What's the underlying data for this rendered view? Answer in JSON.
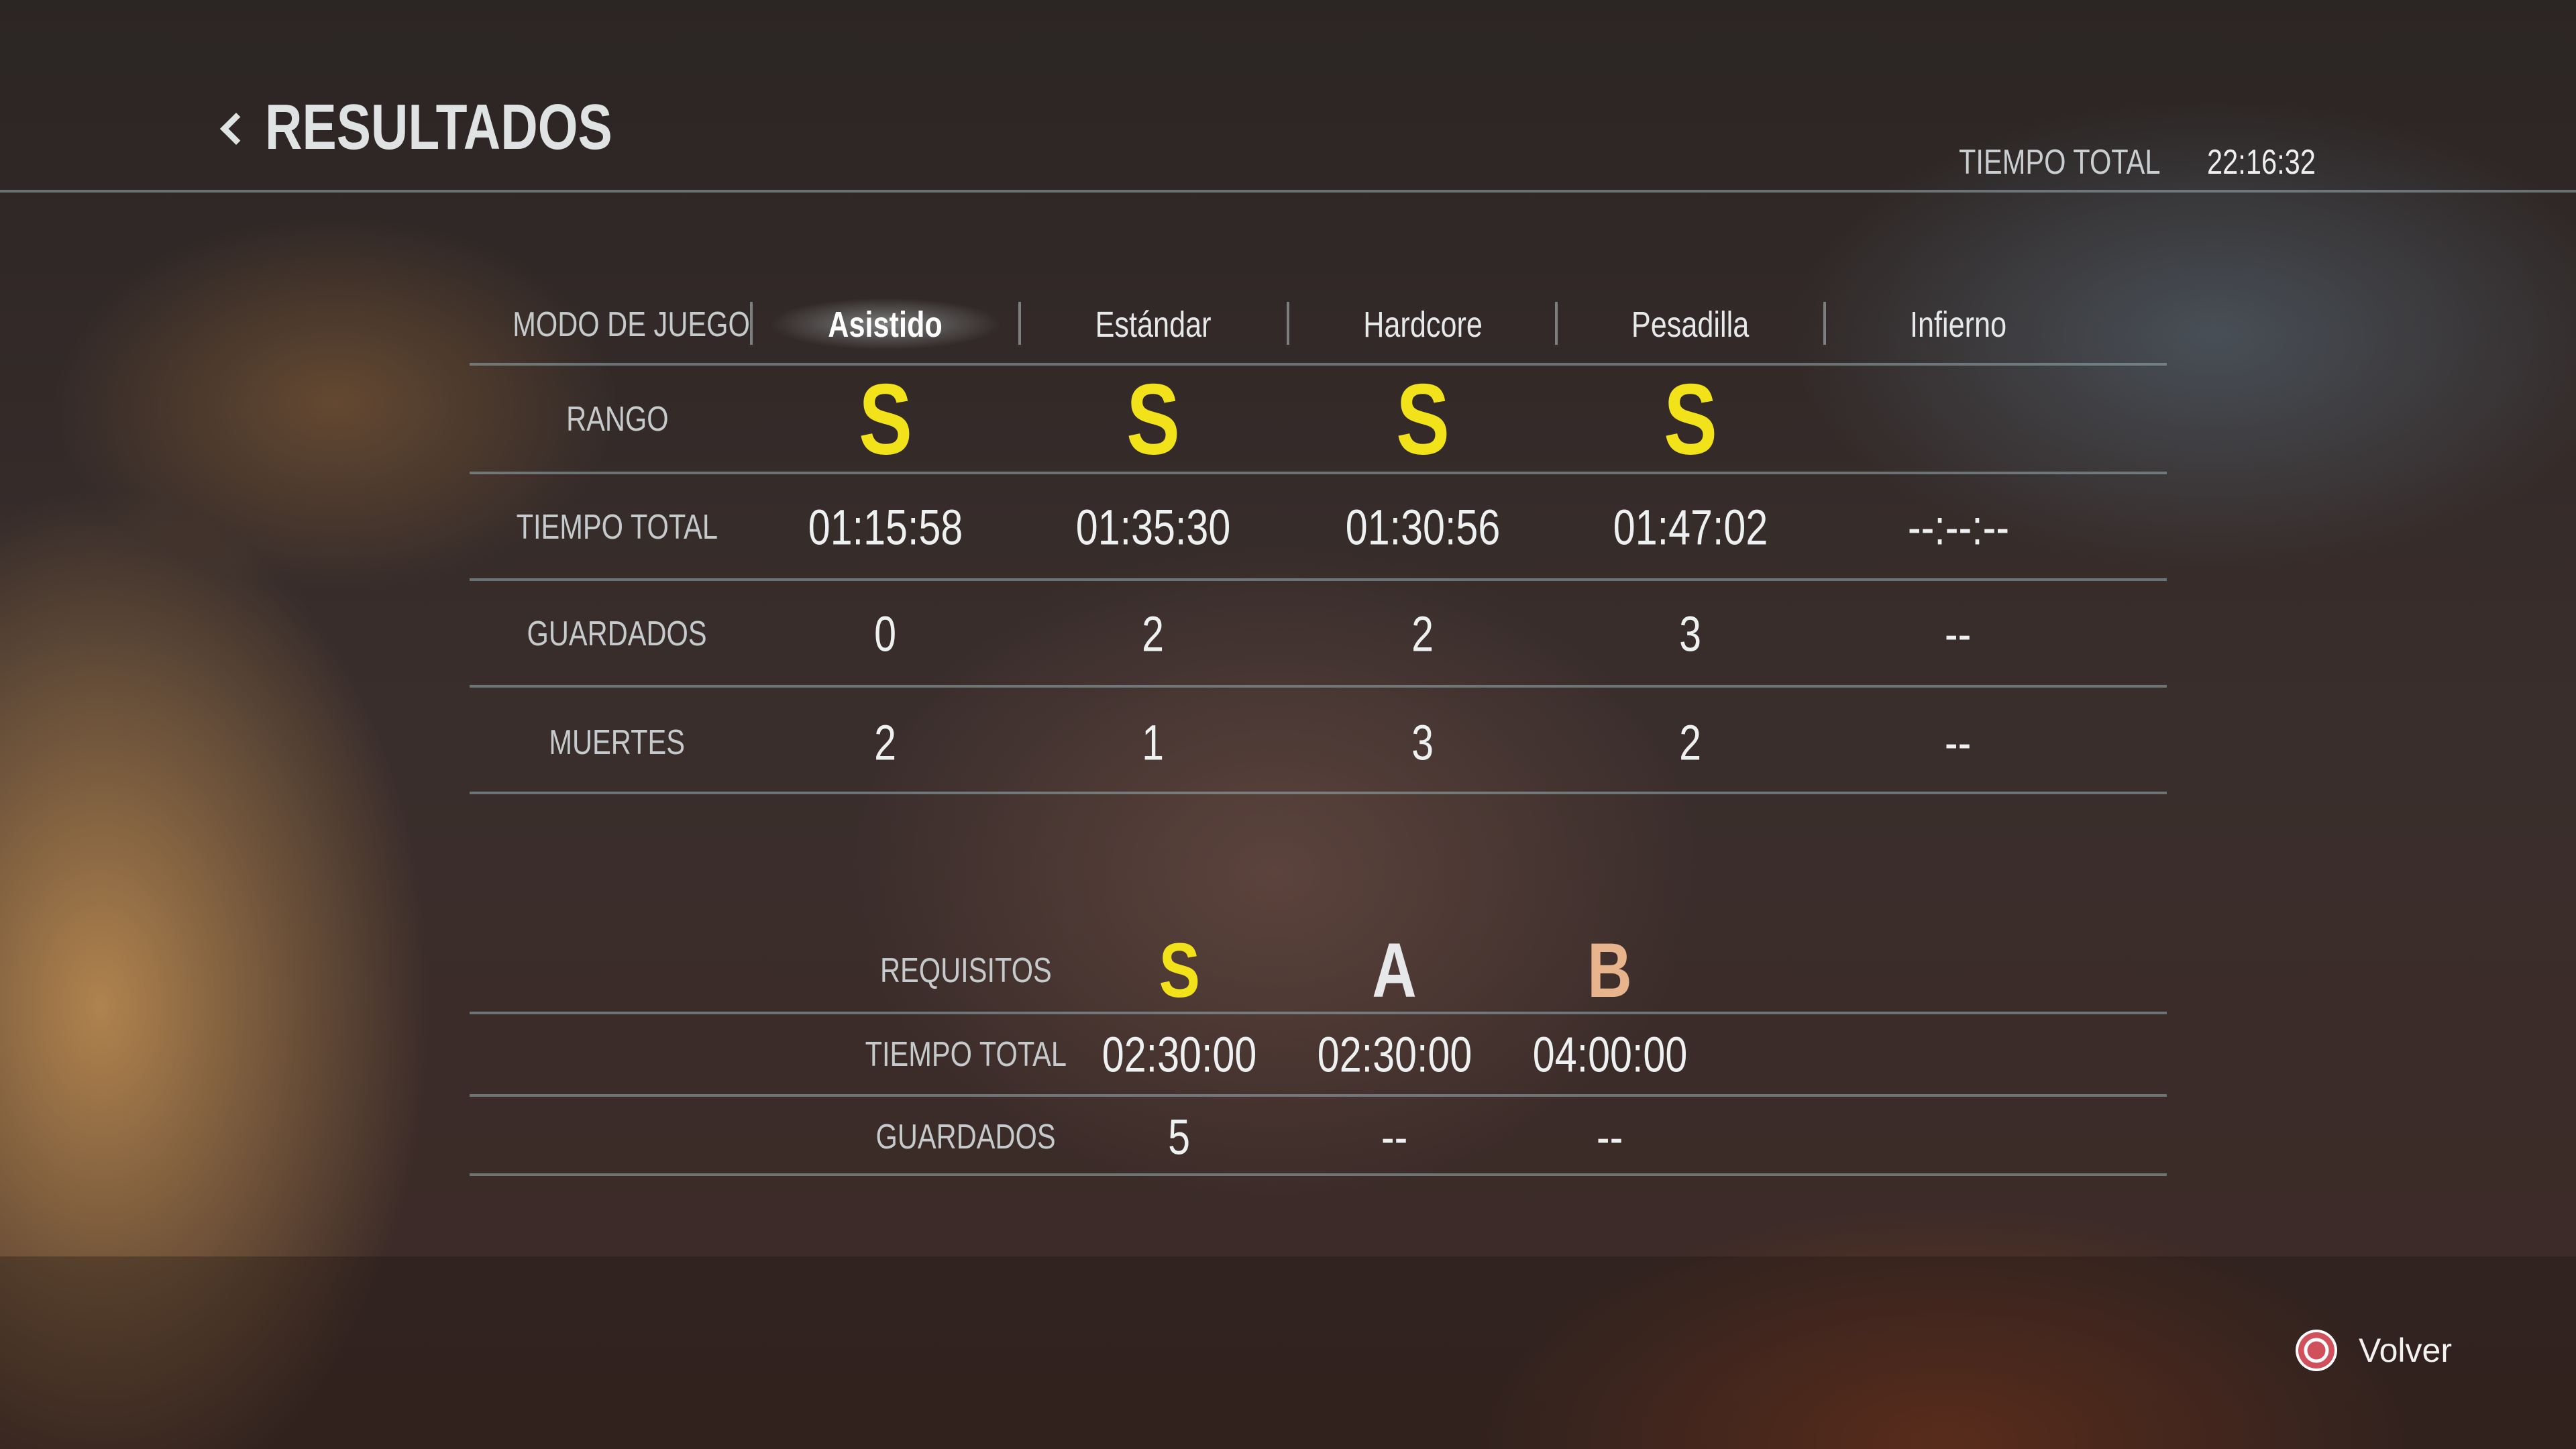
{
  "header": {
    "title": "RESULTADOS",
    "total_label": "TIEMPO TOTAL",
    "total_value": "22:16:32"
  },
  "table": {
    "mode_label": "MODO DE JUEGO",
    "modes": [
      "Asistido",
      "Estándar",
      "Hardcore",
      "Pesadilla",
      "Infierno"
    ],
    "selected_mode": "Asistido",
    "rows": [
      {
        "label": "RANGO",
        "values": [
          "S",
          "S",
          "S",
          "S",
          ""
        ]
      },
      {
        "label": "TIEMPO TOTAL",
        "values": [
          "01:15:58",
          "01:35:30",
          "01:30:56",
          "01:47:02",
          "--:--:--"
        ]
      },
      {
        "label": "GUARDADOS",
        "values": [
          "0",
          "2",
          "2",
          "3",
          "--"
        ]
      },
      {
        "label": "MUERTES",
        "values": [
          "2",
          "1",
          "3",
          "2",
          "--"
        ]
      }
    ]
  },
  "requirements": {
    "label": "REQUISITOS",
    "ranks": [
      "S",
      "A",
      "B"
    ],
    "rank_colors": [
      "#f2e21a",
      "#e6e8ea",
      "#e7b48c"
    ],
    "rows": [
      {
        "label": "TIEMPO TOTAL",
        "values": [
          "02:30:00",
          "02:30:00",
          "04:00:00"
        ]
      },
      {
        "label": "GUARDADOS",
        "values": [
          "5",
          "--",
          "--"
        ]
      }
    ]
  },
  "footer": {
    "back_label": "Volver",
    "back_icon": "circle-button-icon",
    "back_icon_color": "#d0505c"
  },
  "colors": {
    "rank_s": "#f2e21a"
  }
}
